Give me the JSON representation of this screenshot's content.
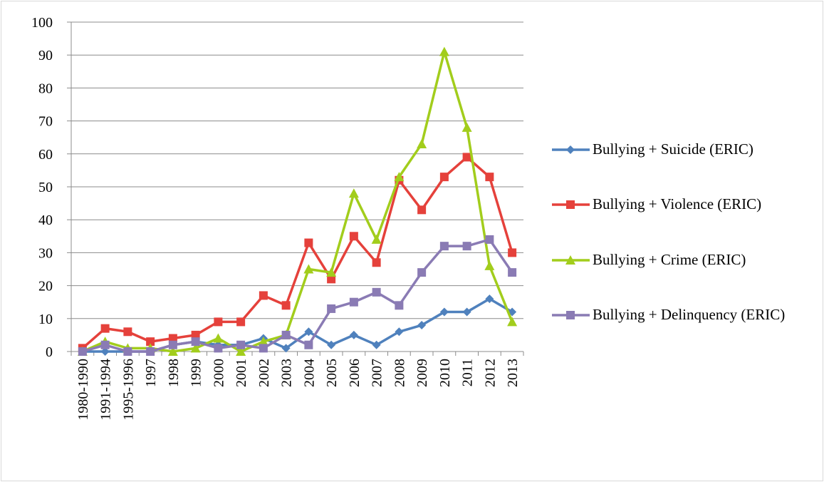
{
  "chart_data": {
    "type": "line",
    "categories": [
      "1980-1990",
      "1991-1994",
      "1995-1996",
      "1997",
      "1998",
      "1999",
      "2000",
      "2001",
      "2002",
      "2003",
      "2004",
      "2005",
      "2006",
      "2007",
      "2008",
      "2009",
      "2010",
      "2011",
      "2012",
      "2013"
    ],
    "series": [
      {
        "name": "Bullying + Suicide (ERIC)",
        "color": "#4f81bd",
        "marker": "diamond",
        "values": [
          0,
          0,
          0,
          0,
          2,
          3,
          2,
          2,
          4,
          1,
          6,
          2,
          5,
          2,
          6,
          8,
          12,
          12,
          16,
          12
        ]
      },
      {
        "name": "Bullying + Violence (ERIC)",
        "color": "#e5413b",
        "marker": "square",
        "values": [
          1,
          7,
          6,
          3,
          4,
          5,
          9,
          9,
          17,
          14,
          33,
          22,
          35,
          27,
          52,
          43,
          53,
          59,
          53,
          30
        ]
      },
      {
        "name": "Bullying + Crime (ERIC)",
        "color": "#a2cd1c",
        "marker": "triangle",
        "values": [
          0,
          3,
          1,
          1,
          0,
          1,
          4,
          0,
          3,
          5,
          25,
          24,
          48,
          34,
          53,
          63,
          91,
          68,
          26,
          9
        ]
      },
      {
        "name": "Bullying + Delinquency (ERIC)",
        "color": "#8a7bb4",
        "marker": "square",
        "values": [
          0,
          2,
          0,
          0,
          2,
          3,
          1,
          2,
          1,
          5,
          2,
          13,
          15,
          18,
          14,
          24,
          32,
          32,
          34,
          24
        ]
      }
    ],
    "ylim": [
      0,
      100
    ],
    "yticks": [
      0,
      10,
      20,
      30,
      40,
      50,
      60,
      70,
      80,
      90,
      100
    ],
    "grid": true,
    "legend": "right"
  }
}
